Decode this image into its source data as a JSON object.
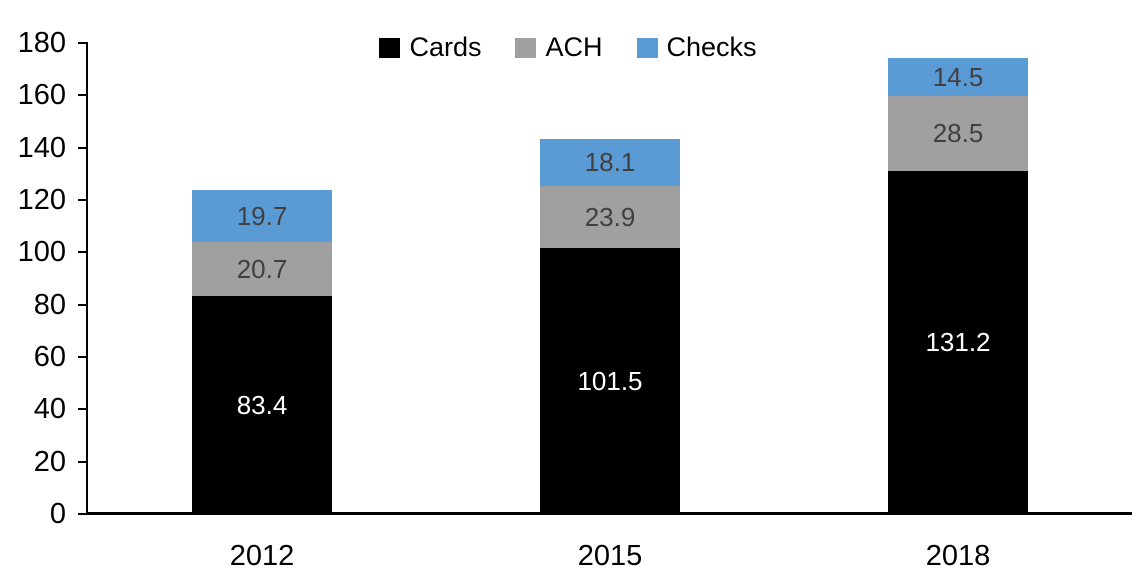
{
  "chart_data": {
    "type": "bar",
    "stacked": true,
    "title": "",
    "xlabel": "",
    "ylabel": "",
    "categories": [
      "2012",
      "2015",
      "2018"
    ],
    "series": [
      {
        "name": "Cards",
        "color": "#000000",
        "label_color": "#ffffff",
        "values": [
          83.4,
          101.5,
          131.2
        ]
      },
      {
        "name": "ACH",
        "color": "#a0a0a0",
        "label_color": "#404040",
        "values": [
          20.7,
          23.9,
          28.5
        ]
      },
      {
        "name": "Checks",
        "color": "#5b9bd5",
        "label_color": "#404040",
        "values": [
          19.7,
          18.1,
          14.5
        ]
      }
    ],
    "totals": [
      123.8,
      143.5,
      174.2
    ],
    "ylim": [
      0,
      180
    ],
    "ytick_step": 20,
    "ytick_labels": [
      "0",
      "20",
      "40",
      "60",
      "80",
      "100",
      "120",
      "140",
      "160",
      "180"
    ],
    "grid": false,
    "legend_position": "top-center",
    "axis_color": "#000000",
    "background_color": "#ffffff",
    "value_label_decimals": 1
  }
}
